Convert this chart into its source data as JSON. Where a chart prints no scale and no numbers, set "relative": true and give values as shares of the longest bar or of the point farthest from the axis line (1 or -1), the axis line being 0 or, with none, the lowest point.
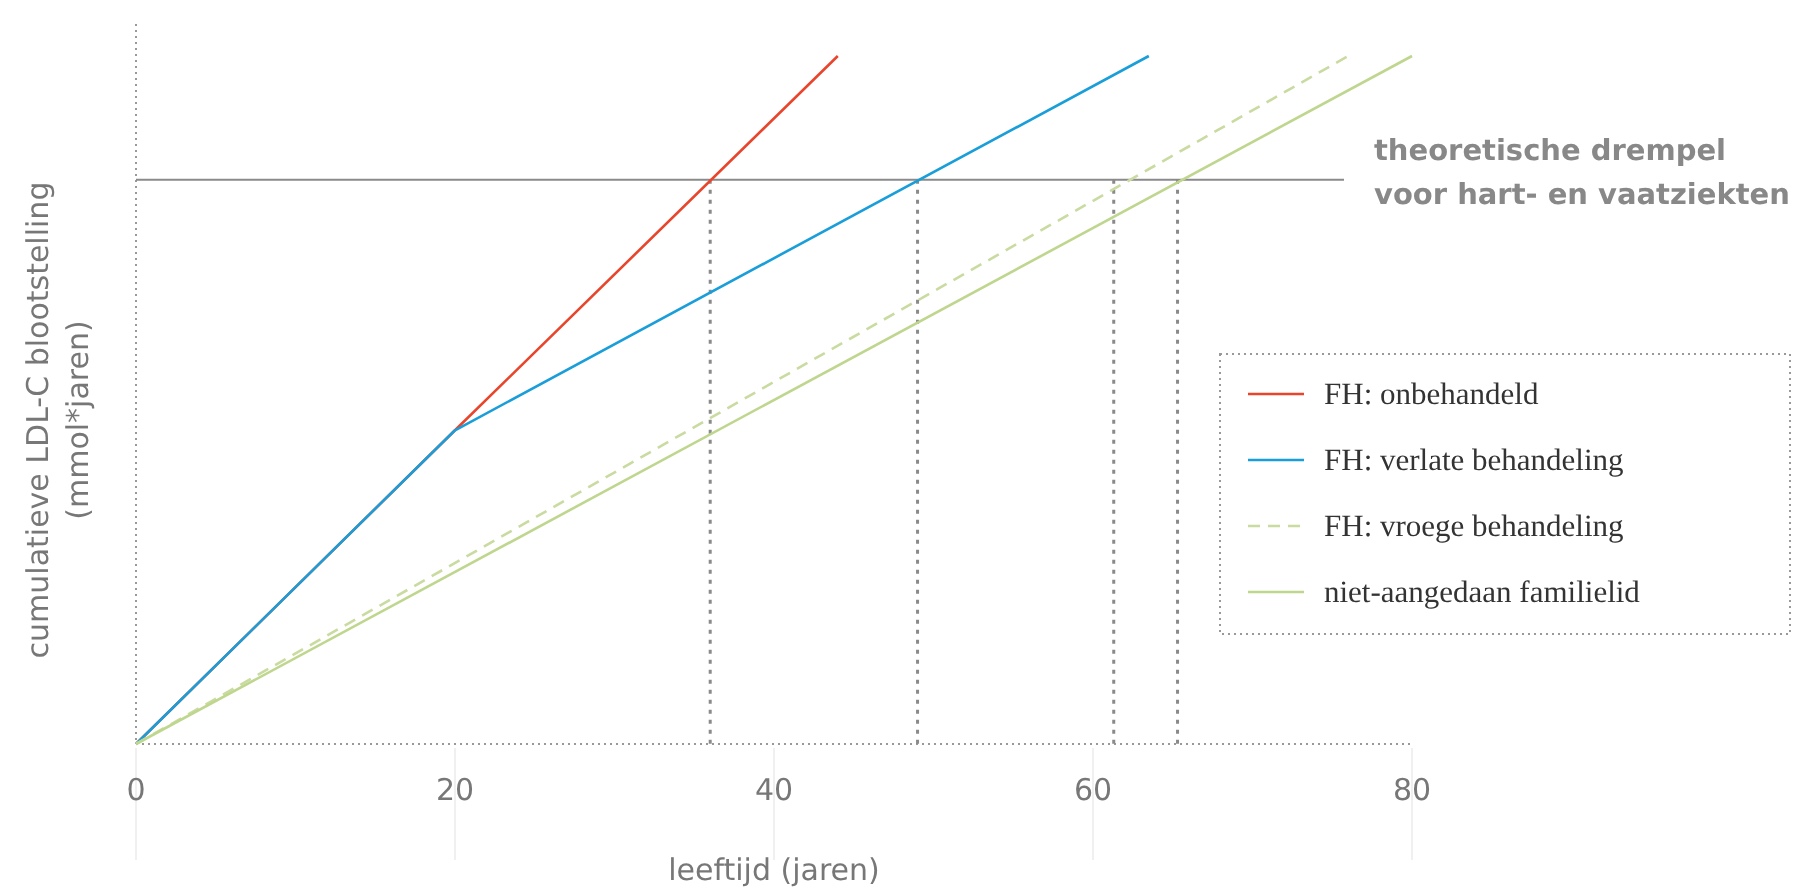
{
  "chart_data": {
    "type": "line",
    "relative": true,
    "xlabel": "leeftijd (jaren)",
    "ylabel": "cumulatieve LDL-C blootstelling\n(mmol*jaren)",
    "xlim": [
      0,
      80
    ],
    "xticks": [
      0,
      20,
      40,
      60,
      80
    ],
    "grid": false,
    "legend": "right",
    "line_style": "solid",
    "series": [
      {
        "name": "FH: onbehandeld",
        "color": "#e8452c",
        "x": [
          0,
          20,
          44
        ],
        "values": [
          0,
          0.456,
          1
        ]
      },
      {
        "name": "FH: verlate behandeling",
        "color": "#1a9ed9",
        "x": [
          0,
          20,
          63.5
        ],
        "values": [
          0,
          0.456,
          1
        ]
      },
      {
        "name": "FH: vroege behandeling",
        "color": "#c9dba0",
        "line_style": "dashed",
        "x": [
          0,
          76
        ],
        "values": [
          0,
          1
        ]
      },
      {
        "name": "niet-aangedaan familielid",
        "color": "#bfd68e",
        "x": [
          0,
          80
        ],
        "values": [
          0,
          1
        ]
      }
    ],
    "ref_lines": [
      {
        "axis": "y",
        "value": 0.82,
        "label": "theoretische drempel\nvoor hart- en vaatziekten",
        "color": "#8a8a8a",
        "line_style": "solid"
      },
      {
        "axis": "x",
        "value": 36,
        "label": null,
        "color": "#8a8a8a",
        "line_style": "dotted"
      },
      {
        "axis": "x",
        "value": 49,
        "label": null,
        "color": "#8a8a8a",
        "line_style": "dotted"
      },
      {
        "axis": "x",
        "value": 61.3,
        "label": null,
        "color": "#8a8a8a",
        "line_style": "dotted"
      },
      {
        "axis": "x",
        "value": 65.3,
        "label": null,
        "color": "#8a8a8a",
        "line_style": "dotted"
      }
    ]
  }
}
